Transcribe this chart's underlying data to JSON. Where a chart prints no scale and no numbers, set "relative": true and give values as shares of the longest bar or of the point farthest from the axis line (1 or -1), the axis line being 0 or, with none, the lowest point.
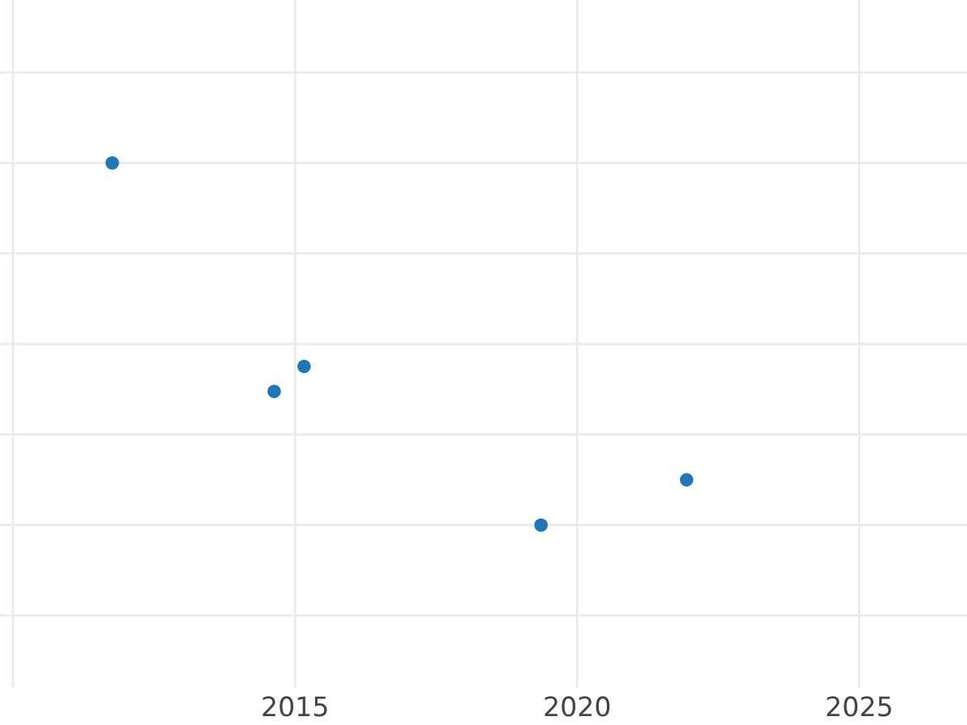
{
  "chart_data": {
    "type": "scatter",
    "relative": true,
    "x": [
      2011.76,
      2014.63,
      2015.16,
      2019.36,
      2021.94
    ],
    "series": [
      {
        "color": "#1f77b4",
        "values": [
          1,
          0.369,
          0.438,
          0,
          0.125
        ]
      }
    ],
    "xlim": [
      2009.77,
      2026.91
    ],
    "xticks": [
      {
        "value": 2010,
        "label": null
      },
      2015,
      2020,
      2025
    ],
    "grid": true,
    "marker": "circle"
  }
}
